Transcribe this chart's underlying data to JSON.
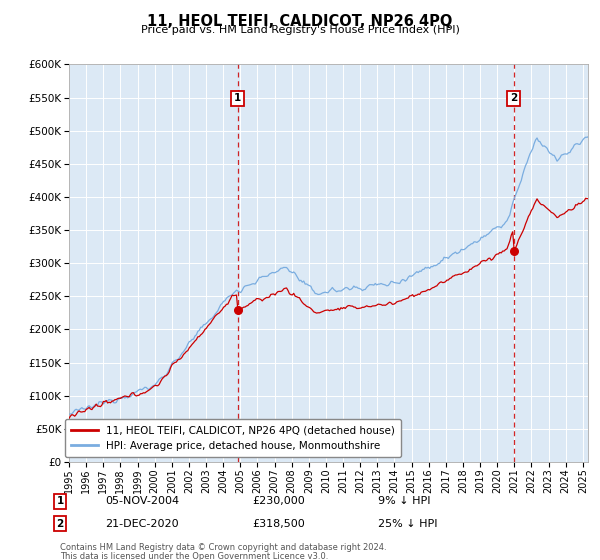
{
  "title": "11, HEOL TEIFI, CALDICOT, NP26 4PQ",
  "subtitle": "Price paid vs. HM Land Registry's House Price Index (HPI)",
  "legend_line1": "11, HEOL TEIFI, CALDICOT, NP26 4PQ (detached house)",
  "legend_line2": "HPI: Average price, detached house, Monmouthshire",
  "annotation1_date": "05-NOV-2004",
  "annotation1_price": "£230,000",
  "annotation1_hpi": "9% ↓ HPI",
  "annotation1_year": 2004.84,
  "annotation1_price_val": 230000,
  "annotation2_date": "21-DEC-2020",
  "annotation2_price": "£318,500",
  "annotation2_hpi": "25% ↓ HPI",
  "annotation2_year": 2020.96,
  "annotation2_price_val": 318500,
  "footer1": "Contains HM Land Registry data © Crown copyright and database right 2024.",
  "footer2": "This data is licensed under the Open Government Licence v3.0.",
  "plot_bg_color": "#dce9f5",
  "hpi_color": "#7aade0",
  "price_color": "#cc0000",
  "annotation_box_color": "#cc0000",
  "ylim_min": 0,
  "ylim_max": 600000,
  "ytick_step": 50000,
  "xlim_start": 1995.0,
  "xlim_end": 2025.3
}
